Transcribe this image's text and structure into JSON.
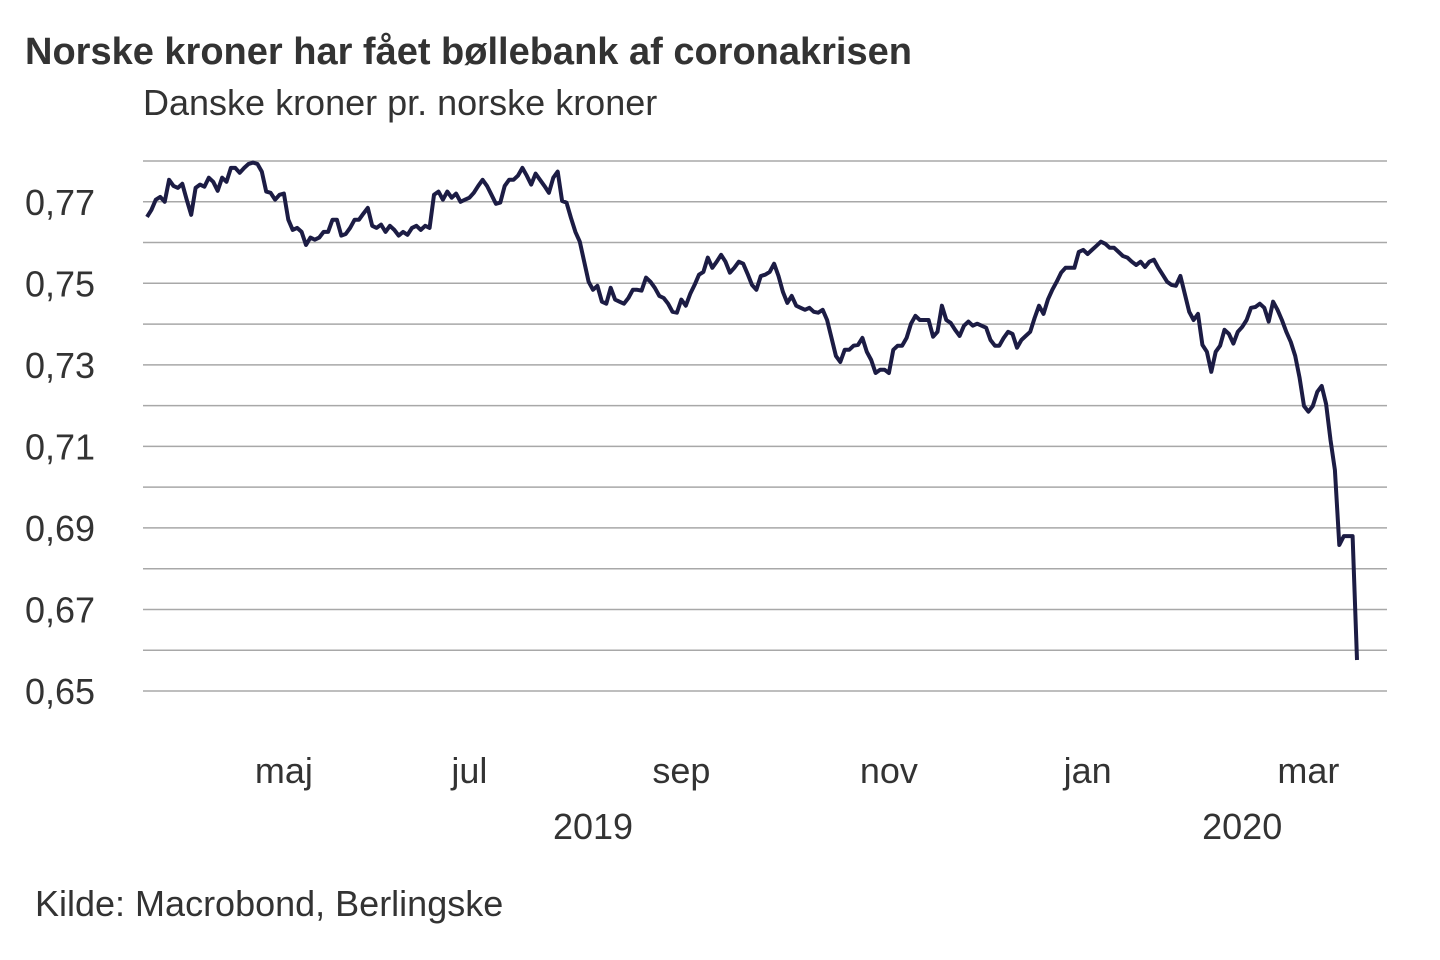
{
  "chart_data": {
    "type": "line",
    "title": "Norske kroner har fået bøllebank af coronakrisen",
    "subtitle": "Danske kroner pr. norske kroner",
    "source": "Kilde: Macrobond, Berlingske",
    "ylim": [
      0.65,
      0.78
    ],
    "yticks": [
      {
        "value": 0.65,
        "label": "0,65"
      },
      {
        "value": 0.67,
        "label": "0,67"
      },
      {
        "value": 0.69,
        "label": "0,69"
      },
      {
        "value": 0.71,
        "label": "0,71"
      },
      {
        "value": 0.73,
        "label": "0,73"
      },
      {
        "value": 0.75,
        "label": "0,75"
      },
      {
        "value": 0.77,
        "label": "0,77"
      }
    ],
    "minor_yticks": [
      0.66,
      0.68,
      0.7,
      0.72,
      0.74,
      0.76,
      0.78
    ],
    "grid": true,
    "categories": [
      null,
      null,
      null,
      null,
      null,
      null,
      null,
      null,
      null,
      null,
      null,
      null,
      null,
      null,
      null,
      null,
      null,
      null,
      null,
      null,
      null,
      null,
      null,
      null,
      null,
      null,
      null,
      null,
      null,
      null,
      null,
      "maj",
      null,
      null,
      null,
      null,
      null,
      null,
      null,
      null,
      null,
      null,
      null,
      null,
      null,
      null,
      null,
      null,
      null,
      null,
      null,
      null,
      null,
      null,
      null,
      null,
      null,
      null,
      null,
      null,
      null,
      null,
      null,
      null,
      null,
      null,
      null,
      null,
      null,
      null,
      null,
      null,
      null,
      "jul",
      null,
      null,
      null,
      null,
      null,
      null,
      null,
      null,
      null,
      null,
      null,
      null,
      null,
      null,
      null,
      null,
      null,
      null,
      null,
      null,
      null,
      null,
      null,
      null,
      null,
      null,
      null,
      null,
      null,
      null,
      null,
      null,
      null,
      null,
      null,
      null,
      null,
      null,
      null,
      null,
      null,
      null,
      null,
      null,
      null,
      null,
      null,
      "sep",
      null,
      null,
      null,
      null,
      null,
      null,
      null,
      null,
      null,
      null,
      null,
      null,
      null,
      null,
      null,
      null,
      null,
      null,
      null,
      null,
      null,
      null,
      null,
      null,
      null,
      null,
      null,
      null,
      null,
      null,
      null,
      null,
      null,
      null,
      null,
      null,
      null,
      null,
      null,
      null,
      null,
      null,
      null,
      null,
      null,
      null,
      "nov",
      null,
      null,
      null,
      null,
      null,
      null,
      null,
      null,
      null,
      null,
      null,
      null,
      null,
      null,
      null,
      null,
      null,
      null,
      null,
      null,
      null,
      null,
      null,
      null,
      null,
      null,
      null,
      null,
      null,
      null,
      null,
      null,
      null,
      null,
      null,
      null,
      null,
      null,
      null,
      null,
      null,
      null,
      null,
      null,
      "jan",
      null,
      null,
      null,
      null,
      null,
      null,
      null,
      null,
      null,
      null,
      null,
      null,
      null,
      null,
      null,
      null,
      null,
      null,
      null,
      null,
      null,
      null,
      null,
      null,
      null,
      null,
      null,
      null,
      null,
      null,
      null,
      null,
      null,
      null,
      null,
      null,
      null,
      null,
      null,
      null,
      null,
      null,
      null,
      null,
      null,
      null,
      null,
      null,
      null,
      "mar",
      null,
      null,
      null,
      null,
      null,
      null,
      null,
      null,
      null,
      null,
      null
    ],
    "year_categories": [
      null,
      null,
      null,
      null,
      null,
      null,
      null,
      null,
      null,
      null,
      null,
      null,
      null,
      null,
      null,
      null,
      null,
      null,
      null,
      null,
      null,
      null,
      null,
      null,
      null,
      null,
      null,
      null,
      null,
      null,
      null,
      null,
      null,
      null,
      null,
      null,
      null,
      null,
      null,
      null,
      null,
      null,
      null,
      null,
      null,
      null,
      null,
      null,
      null,
      null,
      null,
      null,
      null,
      null,
      null,
      null,
      null,
      null,
      null,
      null,
      null,
      null,
      null,
      null,
      null,
      null,
      null,
      null,
      null,
      null,
      null,
      null,
      null,
      null,
      null,
      null,
      null,
      null,
      null,
      null,
      null,
      null,
      null,
      null,
      null,
      null,
      null,
      null,
      null,
      null,
      null,
      null,
      null,
      null,
      null,
      null,
      null,
      null,
      null,
      null,
      null,
      "2019",
      null,
      null,
      null,
      null,
      null,
      null,
      null,
      null,
      null,
      null,
      null,
      null,
      null,
      null,
      null,
      null,
      null,
      null,
      null,
      null,
      null,
      null,
      null,
      null,
      null,
      null,
      null,
      null,
      null,
      null,
      null,
      null,
      null,
      null,
      null,
      null,
      null,
      null,
      null,
      null,
      null,
      null,
      null,
      null,
      null,
      null,
      null,
      null,
      null,
      null,
      null,
      null,
      null,
      null,
      null,
      null,
      null,
      null,
      null,
      null,
      null,
      null,
      null,
      null,
      null,
      null,
      null,
      null,
      null,
      null,
      null,
      null,
      null,
      null,
      null,
      null,
      null,
      null,
      null,
      null,
      null,
      null,
      null,
      null,
      null,
      null,
      null,
      null,
      null,
      null,
      null,
      null,
      null,
      null,
      null,
      null,
      null,
      null,
      null,
      null,
      null,
      null,
      null,
      null,
      null,
      null,
      null,
      null,
      null,
      null,
      null,
      null,
      null,
      null,
      null,
      null,
      null,
      null,
      null,
      null,
      null,
      null,
      null,
      null,
      null,
      null,
      null,
      null,
      null,
      null,
      null,
      null,
      null,
      null,
      null,
      null,
      null,
      null,
      null,
      null,
      null,
      null,
      null,
      null,
      null,
      null,
      "2020",
      null,
      null,
      null,
      null,
      null,
      null,
      null,
      null,
      null,
      null,
      null,
      null,
      null,
      null,
      null,
      null,
      null,
      null,
      null,
      null,
      null,
      null,
      null,
      null,
      null,
      null
    ],
    "series": [
      {
        "color": "#1c1c44",
        "values": [
          0.7663,
          0.768,
          0.7705,
          0.7712,
          0.77,
          0.7754,
          0.7739,
          0.7734,
          0.7744,
          0.7705,
          0.7668,
          0.7734,
          0.7742,
          0.7737,
          0.7759,
          0.7749,
          0.7727,
          0.7759,
          0.7749,
          0.7783,
          0.7783,
          0.7771,
          0.7783,
          0.7793,
          0.7796,
          0.7793,
          0.7774,
          0.7725,
          0.7722,
          0.7705,
          0.7717,
          0.772,
          0.7656,
          0.7631,
          0.7636,
          0.7626,
          0.7594,
          0.7612,
          0.7607,
          0.7612,
          0.7626,
          0.7626,
          0.7656,
          0.7656,
          0.7617,
          0.7621,
          0.7636,
          0.7656,
          0.7656,
          0.7671,
          0.7685,
          0.7641,
          0.7636,
          0.7644,
          0.7626,
          0.7641,
          0.7631,
          0.7617,
          0.7626,
          0.7619,
          0.7636,
          0.7641,
          0.7631,
          0.7641,
          0.7636,
          0.7717,
          0.7725,
          0.7705,
          0.7725,
          0.771,
          0.772,
          0.77,
          0.7705,
          0.771,
          0.7722,
          0.7739,
          0.7754,
          0.7739,
          0.7717,
          0.7695,
          0.7698,
          0.7739,
          0.7754,
          0.7754,
          0.7764,
          0.7783,
          0.7764,
          0.7742,
          0.7769,
          0.7754,
          0.7739,
          0.7722,
          0.7759,
          0.7774,
          0.7702,
          0.7698,
          0.7661,
          0.7626,
          0.7602,
          0.7553,
          0.7504,
          0.7484,
          0.7494,
          0.7455,
          0.745,
          0.7489,
          0.746,
          0.7455,
          0.745,
          0.7464,
          0.7484,
          0.7484,
          0.7482,
          0.7514,
          0.7504,
          0.7489,
          0.7469,
          0.7464,
          0.745,
          0.743,
          0.7428,
          0.746,
          0.7445,
          0.7474,
          0.7496,
          0.7521,
          0.7528,
          0.7563,
          0.7538,
          0.7553,
          0.757,
          0.7553,
          0.7526,
          0.7538,
          0.7553,
          0.7548,
          0.7523,
          0.7496,
          0.7484,
          0.7518,
          0.7521,
          0.7528,
          0.7548,
          0.7518,
          0.7479,
          0.7452,
          0.7469,
          0.7445,
          0.744,
          0.7435,
          0.744,
          0.743,
          0.7428,
          0.7435,
          0.741,
          0.7366,
          0.7322,
          0.7307,
          0.7337,
          0.7337,
          0.7347,
          0.7349,
          0.7366,
          0.7332,
          0.7312,
          0.728,
          0.7288,
          0.7288,
          0.728,
          0.7337,
          0.7347,
          0.7347,
          0.7366,
          0.7401,
          0.742,
          0.741,
          0.741,
          0.741,
          0.7369,
          0.7381,
          0.7445,
          0.741,
          0.7403,
          0.7386,
          0.7371,
          0.7396,
          0.7406,
          0.7396,
          0.7401,
          0.7396,
          0.7391,
          0.7361,
          0.7347,
          0.7347,
          0.7366,
          0.7381,
          0.7376,
          0.7342,
          0.7361,
          0.7371,
          0.7381,
          0.7415,
          0.7445,
          0.7425,
          0.746,
          0.7484,
          0.7504,
          0.7526,
          0.7538,
          0.7538,
          0.7538,
          0.7577,
          0.7582,
          0.7572,
          0.7582,
          0.7592,
          0.7602,
          0.7597,
          0.7587,
          0.7587,
          0.7577,
          0.7567,
          0.7563,
          0.7553,
          0.7545,
          0.7553,
          0.754,
          0.7553,
          0.7558,
          0.7538,
          0.7521,
          0.7504,
          0.7496,
          0.7494,
          0.7518,
          0.7474,
          0.743,
          0.741,
          0.7425,
          0.7349,
          0.7332,
          0.7283,
          0.7332,
          0.7347,
          0.7386,
          0.7376,
          0.7352,
          0.7381,
          0.7393,
          0.741,
          0.744,
          0.7442,
          0.745,
          0.744,
          0.7406,
          0.7455,
          0.7435,
          0.741,
          0.7381,
          0.7356,
          0.7322,
          0.7268,
          0.7199,
          0.7185,
          0.7199,
          0.7234,
          0.7248,
          0.7204,
          0.7116,
          0.7042,
          0.6858,
          0.688,
          0.688,
          0.688,
          0.6576
        ]
      }
    ]
  }
}
